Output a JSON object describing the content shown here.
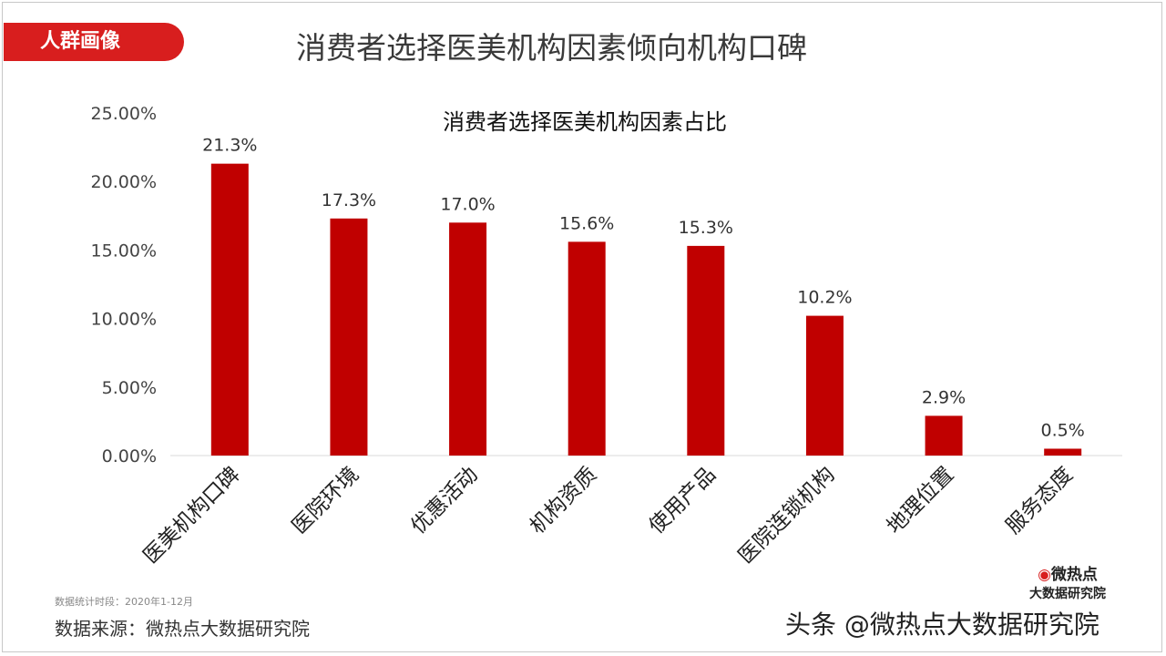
{
  "header": {
    "tag": "人群画像",
    "title": "消费者选择医美机构因素倾向机构口碑"
  },
  "chart_data": {
    "type": "bar",
    "title": "消费者选择医美机构因素占比",
    "categories": [
      "医美机构口碑",
      "医院环境",
      "优惠活动",
      "机构资质",
      "使用产品",
      "医院连锁机构",
      "地理位置",
      "服务态度"
    ],
    "values": [
      21.3,
      17.3,
      17.0,
      15.6,
      15.3,
      10.2,
      2.9,
      0.5
    ],
    "data_labels": [
      "21.3%",
      "17.3%",
      "17.0%",
      "15.6%",
      "15.3%",
      "10.2%",
      "2.9%",
      "0.5%"
    ],
    "yticks": [
      "0.00%",
      "5.00%",
      "10.00%",
      "15.00%",
      "20.00%",
      "25.00%"
    ],
    "ylim": [
      0,
      25
    ],
    "bar_color": "#c00000",
    "grid": false,
    "xlabel": "",
    "ylabel": ""
  },
  "footer": {
    "period": "数据统计时段：2020年1-12月",
    "source": "数据来源：微热点大数据研究院",
    "brand_top": "微热点",
    "brand_bottom": "大数据研究院",
    "watermark": "头条 @微热点大数据研究院"
  }
}
